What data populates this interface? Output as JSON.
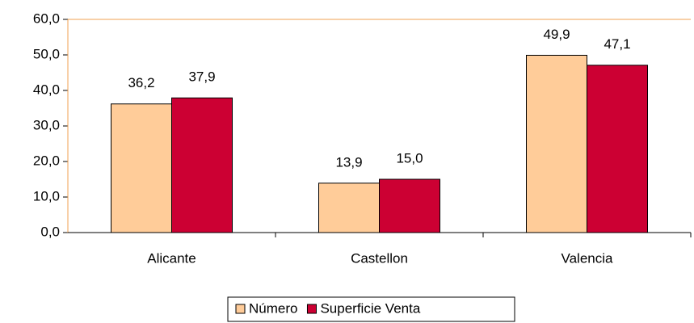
{
  "chart_data": {
    "type": "bar",
    "categories": [
      "Alicante",
      "Castellon",
      "Valencia"
    ],
    "series": [
      {
        "name": "Número",
        "color": "#ffcc99",
        "values": [
          36.2,
          13.9,
          49.9
        ],
        "value_labels": [
          "36,2",
          "13,9",
          "49,9"
        ]
      },
      {
        "name": "Superficie Venta",
        "color": "#cc0033",
        "values": [
          37.9,
          15.0,
          47.1
        ],
        "value_labels": [
          "37,9",
          "15,0",
          "47,1"
        ]
      }
    ],
    "ylim": [
      0,
      60
    ],
    "yticks": [
      {
        "value": 0,
        "label": "0,0"
      },
      {
        "value": 10,
        "label": "10,0"
      },
      {
        "value": 20,
        "label": "20,0"
      },
      {
        "value": 30,
        "label": "30,0"
      },
      {
        "value": 40,
        "label": "40,0"
      },
      {
        "value": 50,
        "label": "50,0"
      },
      {
        "value": 60,
        "label": "60,0"
      }
    ],
    "legend": "bottom"
  }
}
